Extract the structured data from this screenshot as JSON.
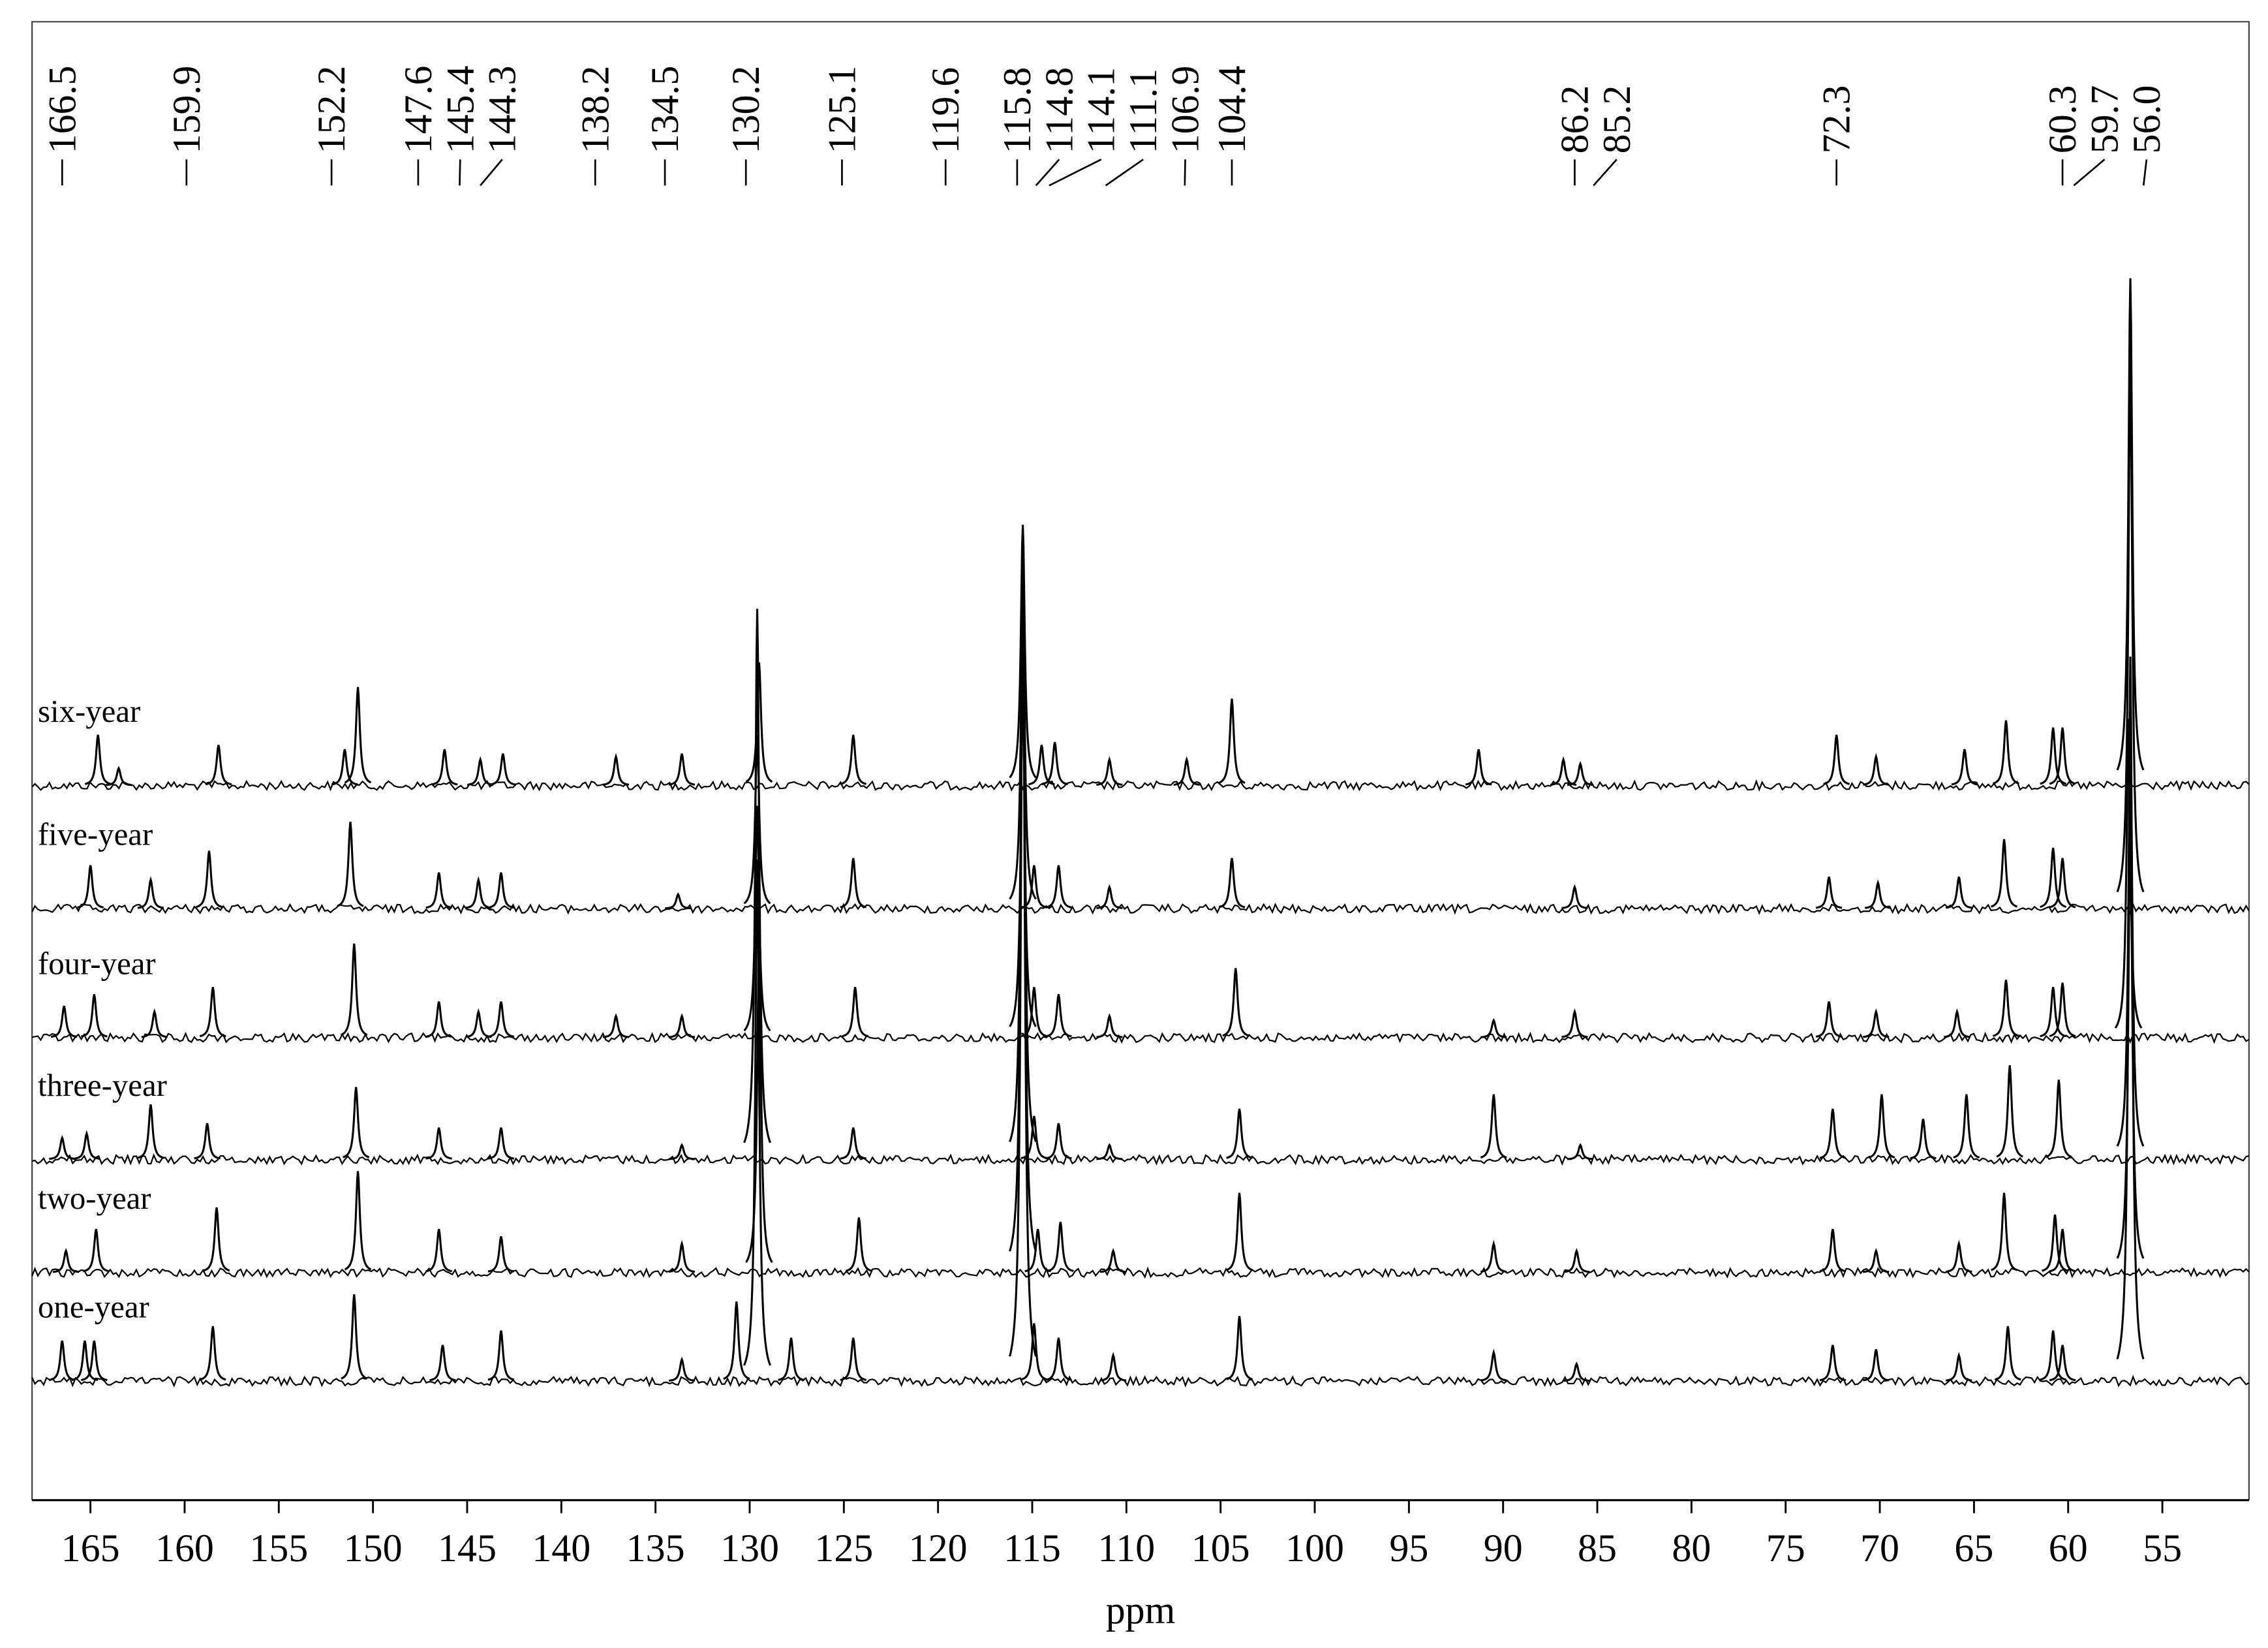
{
  "chart_data": {
    "type": "spectrum",
    "xlabel": "ppm",
    "xlim": [
      168.1,
      50.4
    ],
    "xticks": [
      165,
      160,
      155,
      150,
      145,
      140,
      135,
      130,
      125,
      120,
      115,
      110,
      105,
      100,
      95,
      90,
      85,
      80,
      75,
      70,
      65,
      60,
      55
    ],
    "peak_labels": [
      166.5,
      159.9,
      152.2,
      147.6,
      145.4,
      144.3,
      138.2,
      134.5,
      130.2,
      125.1,
      119.6,
      115.8,
      114.8,
      114.1,
      111.1,
      106.9,
      104.4,
      86.2,
      85.2,
      72.3,
      60.3,
      59.7,
      {
        "value": 56,
        "label": "56.0"
      }
    ],
    "series": [
      {
        "name": "six-year",
        "color": "#000000",
        "x": [
          164.6,
          163.5,
          158.2,
          151.5,
          150.8,
          146.2,
          144.3,
          143.1,
          137.1,
          133.6,
          129.5,
          124.5,
          115.5,
          114.5,
          113.8,
          110.9,
          106.8,
          104.4,
          91.3,
          86.8,
          85.9,
          72.3,
          70.2,
          65.5,
          63.3,
          60.8,
          60.3,
          56.7
        ],
        "values": [
          35,
          12,
          28,
          25,
          68,
          25,
          18,
          22,
          20,
          22,
          85,
          35,
          180,
          28,
          30,
          18,
          18,
          60,
          25,
          18,
          15,
          35,
          20,
          25,
          45,
          40,
          40,
          350
        ]
      },
      {
        "name": "five-year",
        "color": "#000000",
        "x": [
          165.0,
          161.8,
          158.7,
          151.2,
          146.5,
          144.4,
          143.2,
          133.8,
          129.6,
          124.5,
          115.5,
          114.9,
          113.6,
          110.9,
          104.4,
          86.2,
          72.7,
          70.1,
          65.8,
          63.4,
          60.8,
          60.3,
          56.7
        ],
        "values": [
          30,
          20,
          40,
          60,
          25,
          20,
          25,
          10,
          120,
          35,
          220,
          30,
          30,
          15,
          35,
          15,
          22,
          18,
          22,
          48,
          42,
          35,
          380
        ]
      },
      {
        "name": "four-year",
        "color": "#000000",
        "x": [
          166.4,
          164.8,
          161.6,
          158.5,
          151.0,
          146.5,
          144.4,
          143.2,
          137.1,
          133.6,
          129.6,
          124.4,
          115.5,
          114.9,
          113.6,
          110.9,
          104.2,
          90.5,
          86.2,
          72.7,
          70.2,
          65.9,
          63.3,
          60.8,
          60.3,
          56.8
        ],
        "values": [
          22,
          30,
          18,
          35,
          65,
          25,
          18,
          25,
          15,
          15,
          160,
          35,
          250,
          35,
          30,
          15,
          48,
          12,
          18,
          25,
          18,
          18,
          40,
          35,
          38,
          220
        ]
      },
      {
        "name": "three-year",
        "color": "#000000",
        "x": [
          166.5,
          165.2,
          161.8,
          158.8,
          150.9,
          146.5,
          143.2,
          133.6,
          129.6,
          124.5,
          115.5,
          114.9,
          113.6,
          110.9,
          104.0,
          90.5,
          85.9,
          72.5,
          69.9,
          67.7,
          65.4,
          63.1,
          60.5,
          56.7
        ],
        "values": [
          15,
          18,
          38,
          25,
          50,
          22,
          22,
          10,
          380,
          22,
          400,
          30,
          25,
          10,
          35,
          45,
          10,
          35,
          45,
          28,
          45,
          65,
          55,
          300
        ]
      },
      {
        "name": "two-year",
        "color": "#000000",
        "x": [
          166.3,
          164.7,
          158.3,
          150.8,
          146.5,
          143.2,
          133.6,
          129.5,
          124.2,
          115.5,
          114.7,
          113.5,
          110.7,
          104.0,
          90.5,
          86.1,
          72.5,
          70.2,
          65.8,
          63.4,
          60.7,
          60.3,
          56.7
        ],
        "values": [
          15,
          30,
          45,
          70,
          30,
          25,
          20,
          230,
          38,
          480,
          30,
          35,
          15,
          55,
          20,
          15,
          30,
          15,
          20,
          55,
          40,
          30,
          320
        ]
      },
      {
        "name": "one-year",
        "color": "#000000",
        "x": [
          166.5,
          165.3,
          164.8,
          158.5,
          151.0,
          146.3,
          143.2,
          133.6,
          130.7,
          129.6,
          127.8,
          124.5,
          115.5,
          114.9,
          113.6,
          110.7,
          104.0,
          90.5,
          86.1,
          72.5,
          70.2,
          65.8,
          63.2,
          60.8,
          60.3,
          56.7
        ],
        "values": [
          28,
          28,
          28,
          38,
          60,
          25,
          35,
          15,
          55,
          360,
          30,
          30,
          560,
          40,
          30,
          18,
          45,
          20,
          12,
          25,
          22,
          18,
          38,
          35,
          25,
          500
        ]
      }
    ]
  }
}
